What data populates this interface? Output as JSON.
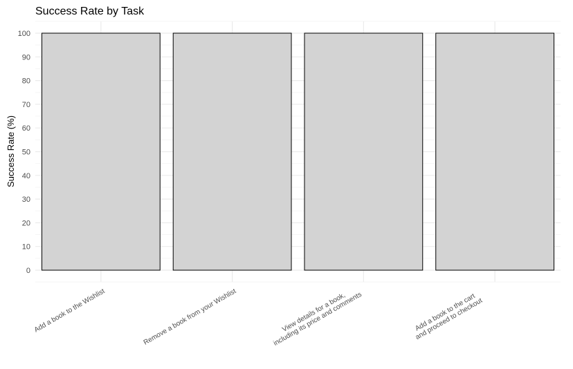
{
  "chart_data": {
    "type": "bar",
    "title": "Success Rate by Task",
    "xlabel": "",
    "ylabel": "Success Rate (%)",
    "categories": [
      [
        "Add a book to the Wishlist"
      ],
      [
        "Remove a book from your Wishlist"
      ],
      [
        "View details for a book,",
        "including its price and comments"
      ],
      [
        "Add a book to the cart",
        "and proceed to checkout"
      ]
    ],
    "values": [
      100,
      100,
      100,
      100
    ],
    "ylim": [
      0,
      100
    ],
    "yticks": [
      0,
      10,
      20,
      30,
      40,
      50,
      60,
      70,
      80,
      90,
      100
    ],
    "grid": true,
    "legend": "none",
    "colors": {
      "bar_fill": "#d3d3d3",
      "bar_stroke": "#000000",
      "grid_major": "#ebebeb",
      "grid_minor": "#f5f5f5"
    }
  }
}
